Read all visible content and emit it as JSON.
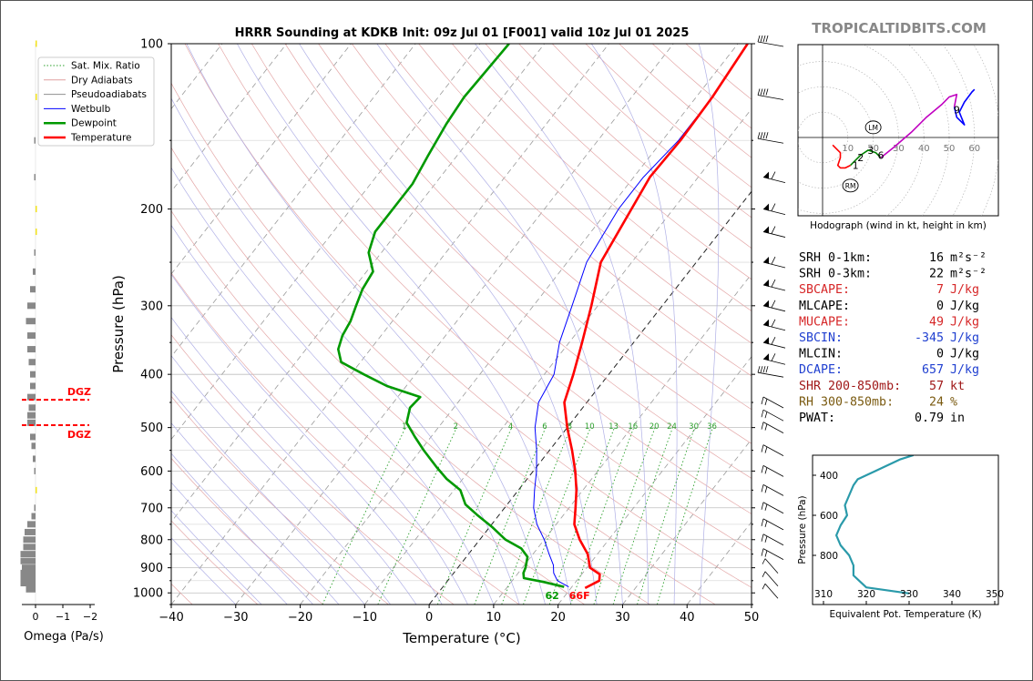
{
  "chart_data": [
    {
      "type": "skew-t",
      "title": "HRRR Sounding at KDKB Init: 09z Jul 01 [F001] valid 10z Jul 01 2025",
      "xlabel": "Temperature (°C)",
      "ylabel": "Pressure (hPa)",
      "xlim": [
        -40,
        50
      ],
      "ylim": [
        1050,
        100
      ],
      "x_ticks": [
        -40,
        -30,
        -20,
        -10,
        0,
        10,
        20,
        30,
        40,
        50
      ],
      "x_tick_labels": [
        "−40",
        "−30",
        "−20",
        "−10",
        "0",
        "10",
        "20",
        "30",
        "40",
        "50"
      ],
      "y_ticks": [
        100,
        200,
        300,
        400,
        500,
        600,
        700,
        800,
        900,
        1000
      ],
      "y_tick_labels": [
        "100",
        "200",
        "300",
        "400",
        "500",
        "600",
        "700",
        "800",
        "900",
        "1000"
      ],
      "legend_placement": "top-left",
      "legend": [
        {
          "name": "Sat. Mix. Ratio",
          "color": "#2ca02c",
          "style": "dotted"
        },
        {
          "name": "Dry Adiabats",
          "color": "#e0a0a0",
          "style": "solid"
        },
        {
          "name": "Pseudoadiabats",
          "color": "#8f8f8f",
          "style": "solid"
        },
        {
          "name": "Wetbulb",
          "color": "#0000ff",
          "style": "solid"
        },
        {
          "name": "Dewpoint",
          "color": "#009900",
          "style": "solid"
        },
        {
          "name": "Temperature",
          "color": "#ff0000",
          "style": "solid"
        }
      ],
      "mixing_ratio_labels": [
        "1",
        "2",
        "4",
        "6",
        "8",
        "10",
        "13",
        "16",
        "20",
        "24",
        "30",
        "36"
      ],
      "series": [
        {
          "name": "Temperature",
          "points": [
            [
              22.2,
              980
            ],
            [
              23.5,
              950
            ],
            [
              22.8,
              925
            ],
            [
              20.5,
              900
            ],
            [
              18.5,
              850
            ],
            [
              15.5,
              800
            ],
            [
              12.8,
              750
            ],
            [
              11,
              700
            ],
            [
              9,
              650
            ],
            [
              6.5,
              600
            ],
            [
              3.5,
              550
            ],
            [
              0,
              500
            ],
            [
              -3.5,
              450
            ],
            [
              -5.5,
              400
            ],
            [
              -8,
              350
            ],
            [
              -11,
              300
            ],
            [
              -14.8,
              250
            ],
            [
              -16.5,
              200
            ],
            [
              -17.5,
              175
            ],
            [
              -17.2,
              150
            ],
            [
              -17.5,
              125
            ],
            [
              -18.5,
              100
            ]
          ]
        },
        {
          "name": "Dewpoint",
          "points": [
            [
              18.8,
              975
            ],
            [
              15,
              955
            ],
            [
              11.5,
              940
            ],
            [
              10.8,
              920
            ],
            [
              10.5,
              900
            ],
            [
              9.5,
              860
            ],
            [
              7.5,
              830
            ],
            [
              4,
              800
            ],
            [
              0.5,
              760
            ],
            [
              -3.5,
              720
            ],
            [
              -6.5,
              690
            ],
            [
              -9,
              650
            ],
            [
              -12.5,
              620
            ],
            [
              -15.5,
              590
            ],
            [
              -19.5,
              550
            ],
            [
              -22.5,
              520
            ],
            [
              -25.5,
              490
            ],
            [
              -26.8,
              460
            ],
            [
              -26.5,
              440
            ],
            [
              -33,
              420
            ],
            [
              -38,
              400
            ],
            [
              -43,
              380
            ],
            [
              -45,
              360
            ],
            [
              -46,
              340
            ],
            [
              -46.5,
              320
            ],
            [
              -47.5,
              300
            ],
            [
              -48.5,
              280
            ],
            [
              -49,
              260
            ],
            [
              -52,
              240
            ],
            [
              -53.5,
              220
            ],
            [
              -53.5,
              200
            ],
            [
              -53.5,
              180
            ],
            [
              -54.5,
              160
            ],
            [
              -55.5,
              140
            ],
            [
              -56,
              125
            ],
            [
              -55.5,
              100
            ]
          ]
        },
        {
          "name": "Wetbulb",
          "points": [
            [
              19.5,
              975
            ],
            [
              17,
              950
            ],
            [
              15.5,
              920
            ],
            [
              14.5,
              890
            ],
            [
              12.5,
              850
            ],
            [
              10,
              800
            ],
            [
              7,
              750
            ],
            [
              4.5,
              700
            ],
            [
              2.5,
              650
            ],
            [
              0.5,
              600
            ],
            [
              -2,
              550
            ],
            [
              -5,
              500
            ],
            [
              -7.5,
              450
            ],
            [
              -8.5,
              400
            ],
            [
              -11.5,
              350
            ],
            [
              -14,
              300
            ],
            [
              -17,
              250
            ],
            [
              -18.5,
              200
            ],
            [
              -18.5,
              175
            ],
            [
              -17.5,
              150
            ],
            [
              -17.5,
              125
            ],
            [
              -18.5,
              100
            ]
          ]
        }
      ],
      "surface_labels": {
        "dewpoint_f": "62",
        "temperature_f": "66F"
      }
    },
    {
      "type": "bar",
      "name": "omega-profile",
      "xlabel": "Omega (Pa/s)",
      "x_ticks": [
        0,
        -1,
        -2
      ],
      "x_tick_labels": [
        "0",
        "−1",
        "−2"
      ],
      "dgz_label": "DGZ",
      "dgz_levels": [
        445,
        495
      ],
      "bars": [
        {
          "p": 985,
          "v": 0.35
        },
        {
          "p": 960,
          "v": 0.55
        },
        {
          "p": 940,
          "v": 0.55
        },
        {
          "p": 920,
          "v": 0.55
        },
        {
          "p": 900,
          "v": 0.5
        },
        {
          "p": 875,
          "v": 0.55
        },
        {
          "p": 850,
          "v": 0.55
        },
        {
          "p": 825,
          "v": 0.45
        },
        {
          "p": 800,
          "v": 0.45
        },
        {
          "p": 775,
          "v": 0.4
        },
        {
          "p": 750,
          "v": 0.3
        },
        {
          "p": 725,
          "v": 0.15
        },
        {
          "p": 700,
          "v": 0.05
        },
        {
          "p": 650,
          "v": -0.05
        },
        {
          "p": 600,
          "v": 0.05
        },
        {
          "p": 570,
          "v": 0.1
        },
        {
          "p": 540,
          "v": 0.15
        },
        {
          "p": 520,
          "v": 0.2
        },
        {
          "p": 490,
          "v": 0.3
        },
        {
          "p": 475,
          "v": 0.3
        },
        {
          "p": 460,
          "v": 0.25
        },
        {
          "p": 440,
          "v": 0.3
        },
        {
          "p": 420,
          "v": 0.2
        },
        {
          "p": 400,
          "v": 0.2
        },
        {
          "p": 380,
          "v": 0.25
        },
        {
          "p": 360,
          "v": 0.3
        },
        {
          "p": 340,
          "v": 0.3
        },
        {
          "p": 320,
          "v": 0.35
        },
        {
          "p": 300,
          "v": 0.3
        },
        {
          "p": 280,
          "v": 0.2
        },
        {
          "p": 260,
          "v": 0.1
        },
        {
          "p": 240,
          "v": 0.05
        },
        {
          "p": 220,
          "v": -0.05
        },
        {
          "p": 200,
          "v": -0.05
        },
        {
          "p": 175,
          "v": 0.05
        },
        {
          "p": 150,
          "v": 0.05
        },
        {
          "p": 125,
          "v": -0.05
        },
        {
          "p": 100,
          "v": -0.05
        }
      ]
    },
    {
      "type": "line",
      "name": "hodograph",
      "xlabel": "Hodograph (wind in kt, height in km)",
      "ring_labels": [
        "10",
        "20",
        "30",
        "40",
        "50",
        "60"
      ],
      "height_labels": [
        {
          "t": "1",
          "u": 13,
          "v": -11
        },
        {
          "t": "2",
          "u": 15,
          "v": -8
        },
        {
          "t": "3",
          "u": 19,
          "v": -5
        },
        {
          "t": "6",
          "u": 23,
          "v": -7
        },
        {
          "t": "9",
          "u": 53,
          "v": 11
        }
      ],
      "storm_motion_labels": [
        {
          "t": "LM",
          "u": 20,
          "v": 4
        },
        {
          "t": "RM",
          "u": 11,
          "v": -19
        }
      ],
      "segments": [
        {
          "color": "#ff0000",
          "points": [
            [
              4,
              -3
            ],
            [
              6,
              -5
            ],
            [
              7,
              -6
            ],
            [
              7,
              -8
            ],
            [
              6,
              -11
            ],
            [
              7,
              -12
            ],
            [
              9,
              -12
            ],
            [
              11,
              -11
            ]
          ]
        },
        {
          "color": "#008000",
          "points": [
            [
              11,
              -11
            ],
            [
              13,
              -9
            ],
            [
              15,
              -7
            ],
            [
              18,
              -5
            ],
            [
              21,
              -6
            ],
            [
              23,
              -8
            ]
          ]
        },
        {
          "color": "#c000c0",
          "points": [
            [
              23,
              -8
            ],
            [
              28,
              -4
            ],
            [
              35,
              2
            ],
            [
              41,
              8
            ],
            [
              47,
              13
            ],
            [
              50,
              16
            ],
            [
              53,
              17
            ],
            [
              52,
              12
            ]
          ]
        },
        {
          "color": "#0000ff",
          "points": [
            [
              52,
              12
            ],
            [
              53,
              8
            ],
            [
              56,
              5
            ],
            [
              54,
              10
            ],
            [
              56,
              14
            ],
            [
              59,
              18
            ],
            [
              60,
              19
            ]
          ]
        }
      ]
    },
    {
      "type": "line",
      "name": "theta-e-profile",
      "xlabel": "Equivalent Pot. Temperature (K)",
      "ylabel": "Pressure (hPa)",
      "x_ticks": [
        310,
        320,
        330,
        340,
        350
      ],
      "y_ticks": [
        400,
        600,
        800
      ],
      "points": [
        [
          331,
          300
        ],
        [
          328,
          320
        ],
        [
          325,
          350
        ],
        [
          322,
          380
        ],
        [
          320,
          400
        ],
        [
          318,
          420
        ],
        [
          317,
          450
        ],
        [
          316,
          500
        ],
        [
          315,
          550
        ],
        [
          315.5,
          600
        ],
        [
          314,
          650
        ],
        [
          313,
          700
        ],
        [
          314,
          750
        ],
        [
          316,
          800
        ],
        [
          317,
          850
        ],
        [
          317,
          900
        ],
        [
          320,
          960
        ],
        [
          330,
          990
        ]
      ]
    }
  ],
  "site_label": "TROPICALTIDBITS.COM",
  "stats": [
    {
      "label": "SRH 0-1km:",
      "value": "16",
      "unit": "m²s⁻²",
      "color": "#000000"
    },
    {
      "label": "SRH 0-3km:",
      "value": "22",
      "unit": "m²s⁻²",
      "color": "#000000"
    },
    {
      "label": "SBCAPE:",
      "value": "7",
      "unit": "J/kg",
      "color": "#d62728"
    },
    {
      "label": "MLCAPE:",
      "value": "0",
      "unit": "J/kg",
      "color": "#000000"
    },
    {
      "label": "MUCAPE:",
      "value": "49",
      "unit": "J/kg",
      "color": "#d62728"
    },
    {
      "label": "SBCIN:",
      "value": "-345",
      "unit": "J/kg",
      "color": "#1f3fd0"
    },
    {
      "label": "MLCIN:",
      "value": "0",
      "unit": "J/kg",
      "color": "#000000"
    },
    {
      "label": "DCAPE:",
      "value": "657",
      "unit": "J/kg",
      "color": "#1f3fd0"
    },
    {
      "label": "SHR 200-850mb:",
      "value": "57",
      "unit": "kt",
      "color": "#a01818"
    },
    {
      "label": "RH 300-850mb:",
      "value": "24",
      "unit": "%",
      "color": "#7a5a10"
    },
    {
      "label": "PWAT:",
      "value": "0.79",
      "unit": "in",
      "color": "#000000"
    }
  ]
}
